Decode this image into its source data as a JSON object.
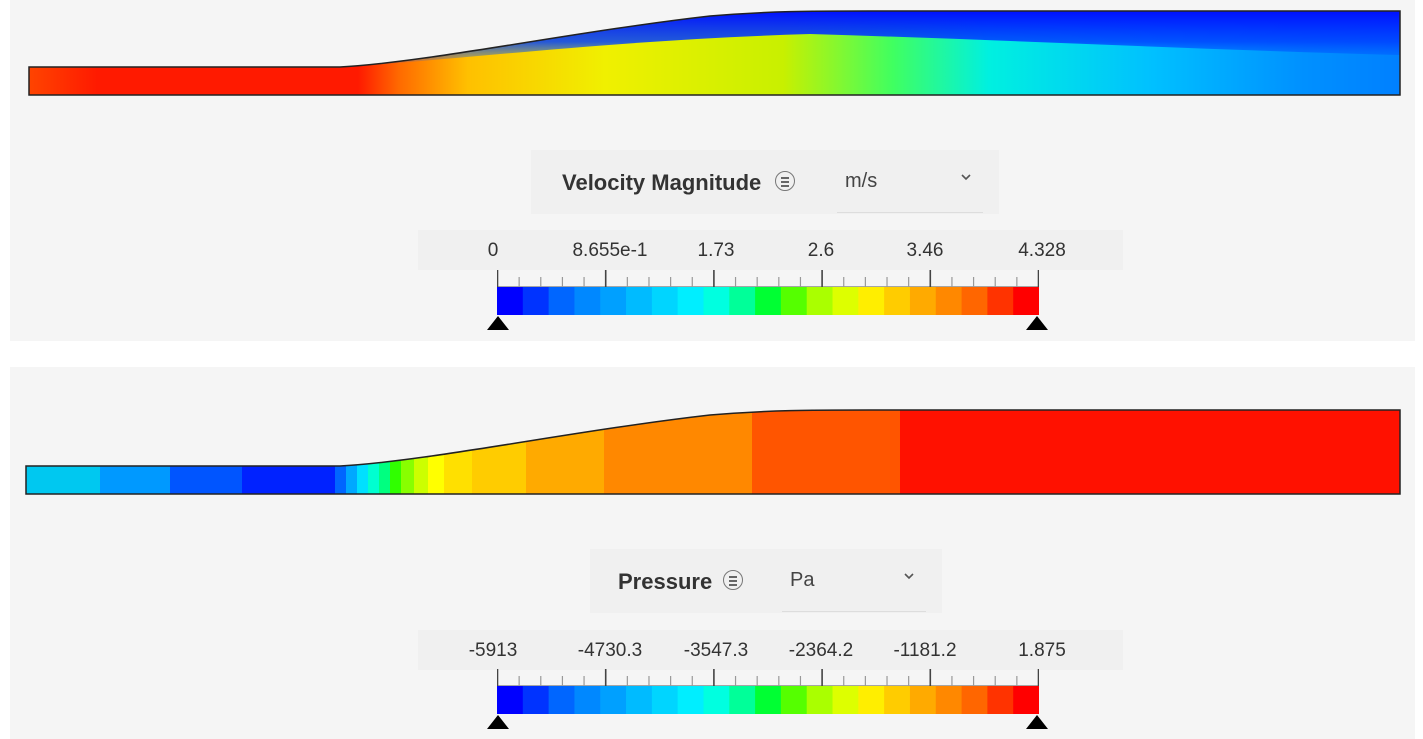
{
  "colors": {
    "scale": [
      "#0000ff",
      "#0033ff",
      "#0066ff",
      "#0088ff",
      "#00a0ff",
      "#00bbff",
      "#00d5ff",
      "#00eeff",
      "#00ffe0",
      "#00ff99",
      "#00ff33",
      "#55ff00",
      "#aaff00",
      "#ddff00",
      "#ffee00",
      "#ffcc00",
      "#ffaa00",
      "#ff8800",
      "#ff6600",
      "#ff3300",
      "#ff0000"
    ],
    "panel_bg": "#f5f5f5"
  },
  "velocity": {
    "title": "Velocity Magnitude",
    "unit": "m/s",
    "menu_icon": "list-icon",
    "dropdown_icon": "chevron-down-icon",
    "ticks": [
      "0",
      "8.655e-1",
      "1.73",
      "2.6",
      "3.46",
      "4.328"
    ]
  },
  "pressure": {
    "title": "Pressure",
    "unit": "Pa",
    "menu_icon": "list-icon",
    "dropdown_icon": "chevron-down-icon",
    "ticks": [
      "-5913",
      "-4730.3",
      "-3547.3",
      "-2364.2",
      "-1181.2",
      "1.875"
    ]
  }
}
